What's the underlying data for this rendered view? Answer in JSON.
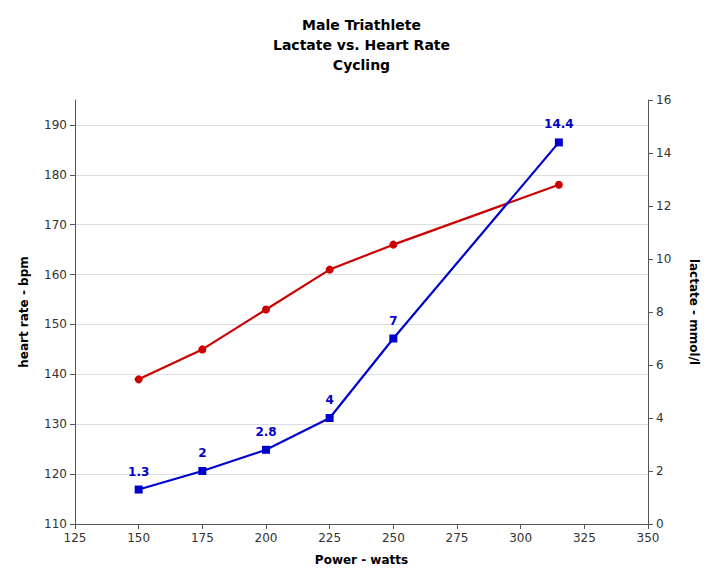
{
  "chart_data": {
    "type": "line",
    "title": "Male Triathlete\nLactate vs. Heart Rate\nCycling",
    "x": [
      150,
      175,
      200,
      225,
      250,
      315
    ],
    "xlabel": "Power - watts",
    "ylabel": "heart rate - bpm",
    "y2label": "lactate - mmol/l",
    "xlim": [
      125,
      350
    ],
    "xticks": [
      125,
      150,
      175,
      200,
      225,
      250,
      275,
      300,
      325,
      350
    ],
    "ylim": [
      110,
      195
    ],
    "yticks": [
      110,
      120,
      130,
      140,
      150,
      160,
      170,
      180,
      190
    ],
    "y2lim": [
      0,
      16
    ],
    "y2ticks": [
      0,
      2,
      4,
      6,
      8,
      10,
      12,
      14,
      16
    ],
    "grid": true,
    "series": [
      {
        "color": "#cc0000",
        "marker": "circle",
        "values": [
          139,
          145,
          153,
          161,
          166,
          178
        ]
      },
      {
        "color": "#0000cc",
        "marker": "square",
        "axis": "y2",
        "data_labels": true,
        "values": [
          1.3,
          2.0,
          2.8,
          4.0,
          7.0,
          14.4
        ]
      }
    ]
  }
}
